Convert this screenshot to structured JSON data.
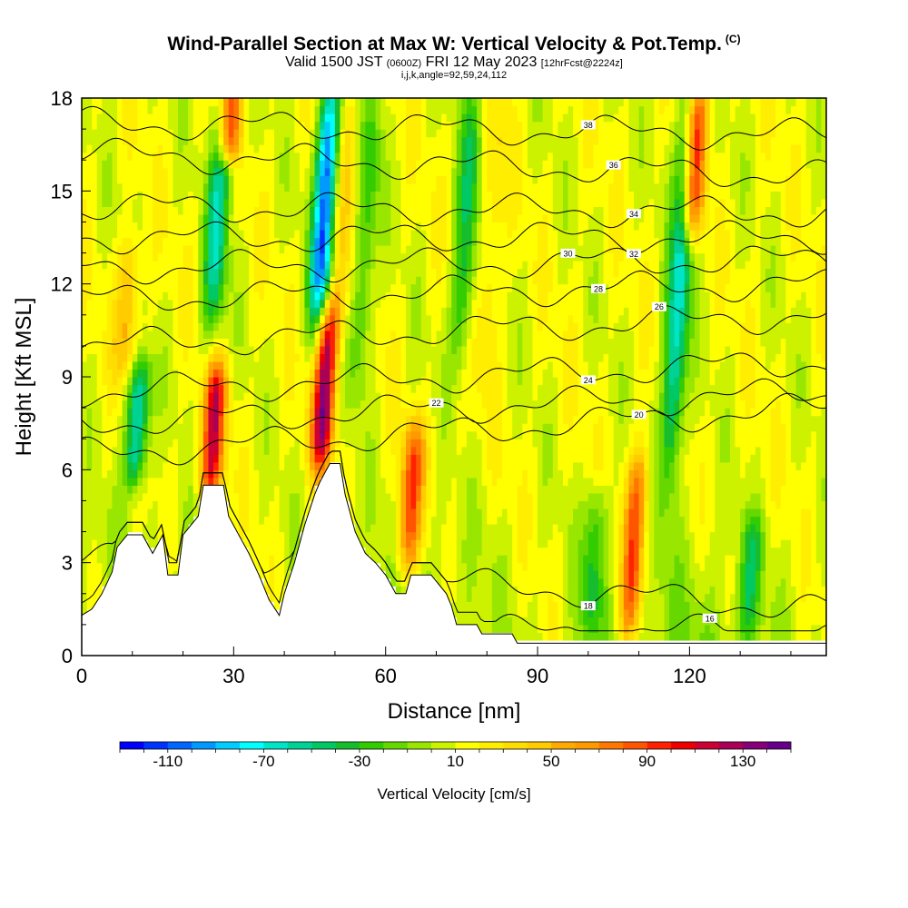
{
  "title": {
    "main": "Wind-Parallel Section at Max W: Vertical Velocity & Pot.Temp.",
    "copyright": "(C)",
    "valid_prefix": "Valid 1500 JST",
    "utc": "(0600Z)",
    "valid_date": "FRI 12 May 2023",
    "forecast": "[12hrFcst@2224z]",
    "indices": "i,j,k,angle=92,59,24,112"
  },
  "chart_data": {
    "type": "heatmap",
    "xlabel": "Distance [nm]",
    "ylabel": "Height [Kft MSL]",
    "xlim": [
      0,
      147
    ],
    "ylim": [
      0,
      18
    ],
    "x_ticks": [
      0,
      30,
      60,
      90,
      120
    ],
    "y_ticks": [
      0,
      3,
      6,
      9,
      12,
      15,
      18
    ],
    "x_tick_labels": [
      "0",
      "30",
      "60",
      "90",
      "120"
    ],
    "y_tick_labels": [
      "0",
      "3",
      "6",
      "9",
      "12",
      "15",
      "18"
    ],
    "colorbar": {
      "label": "Vertical Velocity [cm/s]",
      "min": -130,
      "max": 150,
      "step": 10,
      "tick_values": [
        -110,
        -70,
        -30,
        10,
        50,
        90,
        130
      ],
      "tick_labels": [
        "-110",
        "-70",
        "-30",
        "10",
        "50",
        "90",
        "130"
      ],
      "colors": [
        "#0000ff",
        "#0033ff",
        "#0066ff",
        "#0099ff",
        "#00ccff",
        "#00ffff",
        "#00e5c8",
        "#00d296",
        "#00c864",
        "#16be2e",
        "#33cc00",
        "#66d800",
        "#99e600",
        "#ccf200",
        "#ffff00",
        "#ffee00",
        "#ffdd00",
        "#ffcc00",
        "#ffaa00",
        "#ff9900",
        "#ff7700",
        "#ff5500",
        "#ff2200",
        "#ee0000",
        "#cc0033",
        "#aa0055",
        "#880077",
        "#660088"
      ]
    },
    "updrafts": [
      {
        "x": 9,
        "zmin": 9.5,
        "zmax": 13,
        "peak": 50
      },
      {
        "x": 26,
        "zmin": 5.5,
        "zmax": 9,
        "peak": 110
      },
      {
        "x": 29,
        "zmin": 16.5,
        "zmax": 18,
        "peak": 110
      },
      {
        "x": 48,
        "zmin": 6.5,
        "zmax": 11,
        "peak": 130
      },
      {
        "x": 52,
        "zmin": 11,
        "zmax": 18,
        "peak": 40
      },
      {
        "x": 65,
        "zmin": 3,
        "zmax": 7,
        "peak": 90
      },
      {
        "x": 81,
        "zmin": 9,
        "zmax": 18,
        "peak": 30
      },
      {
        "x": 109,
        "zmin": 1,
        "zmax": 6,
        "peak": 90
      },
      {
        "x": 121,
        "zmin": 14,
        "zmax": 18,
        "peak": 110
      }
    ],
    "downdrafts": [
      {
        "x": 11,
        "zmin": 6,
        "zmax": 9,
        "peak": -70
      },
      {
        "x": 27,
        "zmin": 11,
        "zmax": 18,
        "peak": -60
      },
      {
        "x": 48,
        "zmin": 11,
        "zmax": 18,
        "peak": -110
      },
      {
        "x": 56,
        "zmin": 9,
        "zmax": 18,
        "peak": -30
      },
      {
        "x": 76,
        "zmin": 10,
        "zmax": 18,
        "peak": -40
      },
      {
        "x": 101,
        "zmin": 1,
        "zmax": 5,
        "peak": -30
      },
      {
        "x": 118,
        "zmin": 6,
        "zmax": 18,
        "peak": -70
      },
      {
        "x": 132,
        "zmin": 1,
        "zmax": 4,
        "peak": -30
      }
    ],
    "theta_contours": [
      {
        "value": 16,
        "z0": 0.8,
        "z1": 0.8,
        "label_x": 124
      },
      {
        "value": 18,
        "z0": 3.2,
        "z1": 1.5,
        "label_x": 100
      },
      {
        "value": 20,
        "z0": 6.5,
        "z1": 8,
        "label_x": 110
      },
      {
        "value": 22,
        "z0": 7.5,
        "z1": 8.5,
        "label_x": 70
      },
      {
        "value": 24,
        "z0": 8.5,
        "z1": 9.5,
        "label_x": 100
      },
      {
        "value": 26,
        "z0": 10,
        "z1": 11,
        "label_x": 114
      },
      {
        "value": 28,
        "z0": 11.5,
        "z1": 12,
        "label_x": 102
      },
      {
        "value": 30,
        "z0": 12.5,
        "z1": 12.8,
        "label_x": 96
      },
      {
        "value": 32,
        "z0": 13.5,
        "z1": 13.5,
        "label_x": 109
      },
      {
        "value": 34,
        "z0": 14.5,
        "z1": 14.3,
        "label_x": 109
      },
      {
        "value": 36,
        "z0": 16.2,
        "z1": 15.5,
        "label_x": 105
      },
      {
        "value": 38,
        "z0": 17.2,
        "z1": 16.8,
        "label_x": 100
      }
    ],
    "terrain": [
      [
        0,
        1.3
      ],
      [
        2,
        1.5
      ],
      [
        4,
        2
      ],
      [
        6,
        2.7
      ],
      [
        7,
        3.5
      ],
      [
        9,
        3.9
      ],
      [
        12,
        3.9
      ],
      [
        14,
        3.3
      ],
      [
        16,
        3.9
      ],
      [
        17,
        2.6
      ],
      [
        19,
        2.6
      ],
      [
        20,
        3.9
      ],
      [
        23,
        4.5
      ],
      [
        24,
        5.5
      ],
      [
        28,
        5.5
      ],
      [
        29,
        4.5
      ],
      [
        31,
        3.9
      ],
      [
        33,
        3.3
      ],
      [
        35,
        2.6
      ],
      [
        37,
        1.8
      ],
      [
        39,
        1.3
      ],
      [
        40,
        2
      ],
      [
        42,
        3
      ],
      [
        44,
        4.2
      ],
      [
        46,
        5.2
      ],
      [
        47,
        5.6
      ],
      [
        49,
        6.2
      ],
      [
        51,
        6.2
      ],
      [
        52,
        5.2
      ],
      [
        54,
        4
      ],
      [
        56,
        3.3
      ],
      [
        58,
        3
      ],
      [
        60,
        2.6
      ],
      [
        62,
        2
      ],
      [
        64,
        2
      ],
      [
        65,
        2.6
      ],
      [
        69,
        2.6
      ],
      [
        71,
        2.2
      ],
      [
        72,
        2
      ],
      [
        73,
        1.6
      ],
      [
        74,
        1
      ],
      [
        78,
        1
      ],
      [
        79,
        0.7
      ],
      [
        85,
        0.7
      ],
      [
        86,
        0.4
      ],
      [
        147,
        0.4
      ]
    ]
  }
}
